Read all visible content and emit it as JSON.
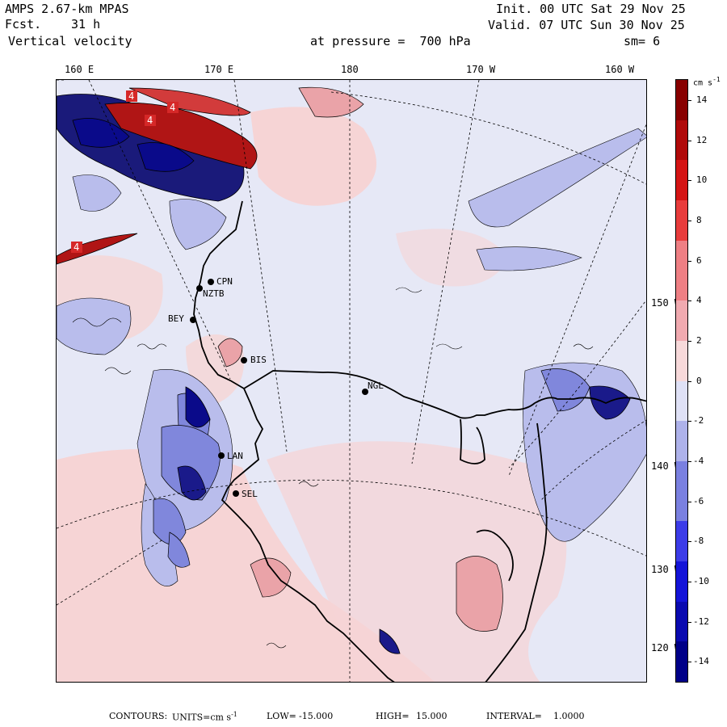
{
  "header": {
    "model": "AMPS 2.67-km MPAS",
    "forecast_label": "Fcst.",
    "forecast_hours": "31 h",
    "variable": "Vertical velocity",
    "init": "Init. 00 UTC Sat 29 Nov 25",
    "valid": "Valid. 07 UTC Sun 30 Nov 25",
    "level": "at pressure =  700 hPa",
    "smoothing": "sm= 6"
  },
  "top_longitudes": [
    "160 E",
    "170 E",
    "180",
    "170 W",
    "160 W"
  ],
  "right_longitudes": [
    "150 W",
    "140 W",
    "130 W",
    "120 W"
  ],
  "stations": [
    "CPN",
    "NZTB",
    "BEY",
    "BIS",
    "NGL",
    "LAN",
    "SEL"
  ],
  "contour_labels": [
    "4",
    "4",
    "4",
    "4"
  ],
  "colorbar": {
    "units_label": "cm s",
    "units_exp": "-1",
    "ticks": [
      "14",
      "12",
      "10",
      "8",
      "6",
      "4",
      "2",
      "0",
      "-2",
      "-4",
      "-6",
      "-8",
      "-10",
      "-12",
      "-14"
    ],
    "min": -15,
    "max": 15
  },
  "footer": {
    "contours": "CONTOURS:",
    "units_prefix": "UNITS=cm s",
    "units_exp": "-1",
    "low_label": "LOW=",
    "low_value": "-15.000",
    "high_label": "HIGH=",
    "high_value": "15.000",
    "interval_label": "INTERVAL=",
    "interval_value": "1.0000"
  },
  "colors": {
    "strong_pos": "#8b0000",
    "pos": "#e8828a",
    "light_pos": "#f6d2d3",
    "light_neg": "#dcdff6",
    "neg": "#8a91e0",
    "strong_neg": "#0a0a8a",
    "background": "#e6e8f6"
  }
}
